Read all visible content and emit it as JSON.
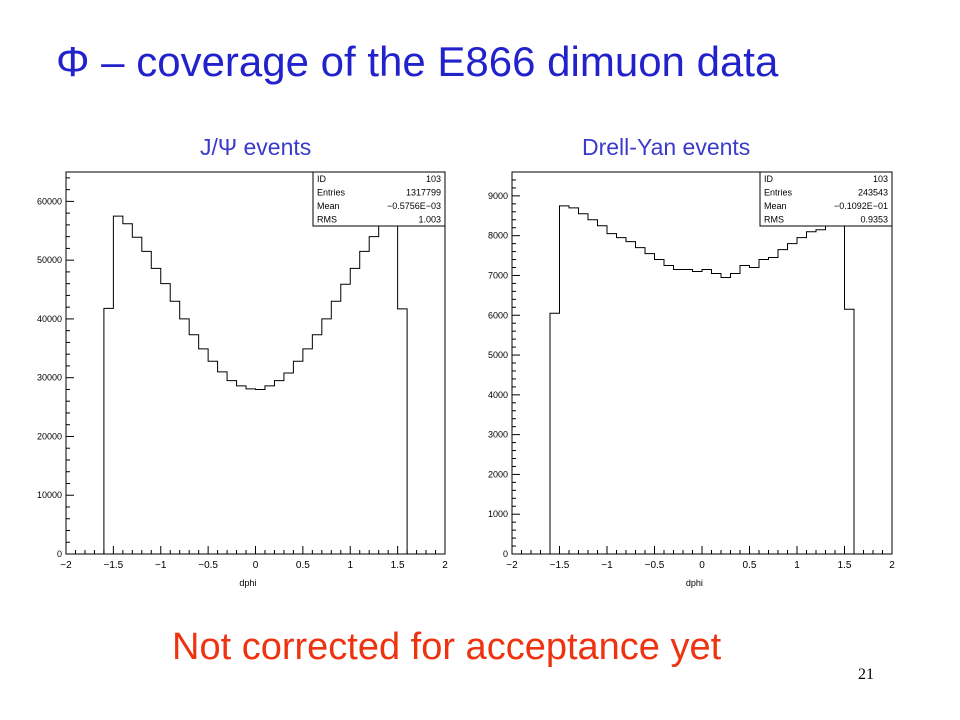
{
  "slide": {
    "title": "Φ – coverage of the E866 dimuon data",
    "note": "Not corrected for acceptance yet",
    "page_number": "21"
  },
  "colors": {
    "title": "#2222cc",
    "panel_title": "#3a3acc",
    "note": "#ee3311"
  },
  "chart_data": [
    {
      "type": "histogram",
      "title": "J/Ψ events",
      "xlabel": "dphi",
      "ylabel": "",
      "xlim": [
        -2,
        2
      ],
      "ylim": [
        0,
        65000
      ],
      "x_ticks": [
        -2,
        -1.5,
        -1,
        -0.5,
        0,
        0.5,
        1,
        1.5,
        2
      ],
      "x_tick_labels": [
        "−2",
        "−1.5",
        "−1",
        "−0.5",
        "0",
        "0.5",
        "1",
        "1.5",
        "2"
      ],
      "y_ticks": [
        0,
        10000,
        20000,
        30000,
        40000,
        50000,
        60000
      ],
      "y_tick_labels": [
        "0",
        "10000",
        "20000",
        "30000",
        "40000",
        "50000",
        "60000"
      ],
      "bin_edges": [
        -1.6,
        -1.5,
        -1.4,
        -1.3,
        -1.2,
        -1.1,
        -1.0,
        -0.9,
        -0.8,
        -0.7,
        -0.6,
        -0.5,
        -0.4,
        -0.3,
        -0.2,
        -0.1,
        0.0,
        0.1,
        0.2,
        0.3,
        0.4,
        0.5,
        0.6,
        0.7,
        0.8,
        0.9,
        1.0,
        1.1,
        1.2,
        1.3,
        1.4,
        1.5,
        1.6
      ],
      "values": [
        41800,
        57500,
        56200,
        53900,
        51500,
        48600,
        46000,
        43000,
        40000,
        37300,
        34900,
        32800,
        31000,
        29500,
        28600,
        28100,
        28000,
        28600,
        29500,
        30800,
        32800,
        34900,
        37300,
        40000,
        43000,
        45900,
        48600,
        51500,
        54000,
        56300,
        57800,
        41700
      ],
      "stats": [
        {
          "label": "ID",
          "value": "103"
        },
        {
          "label": "Entries",
          "value": "1317799"
        },
        {
          "label": "Mean",
          "value": "−0.5756E−03"
        },
        {
          "label": "RMS",
          "value": "1.003"
        }
      ]
    },
    {
      "type": "histogram",
      "title": "Drell-Yan events",
      "xlabel": "dphi",
      "ylabel": "",
      "xlim": [
        -2,
        2
      ],
      "ylim": [
        0,
        9600
      ],
      "x_ticks": [
        -2,
        -1.5,
        -1,
        -0.5,
        0,
        0.5,
        1,
        1.5,
        2
      ],
      "x_tick_labels": [
        "−2",
        "−1.5",
        "−1",
        "−0.5",
        "0",
        "0.5",
        "1",
        "1.5",
        "2"
      ],
      "y_ticks": [
        0,
        1000,
        2000,
        3000,
        4000,
        5000,
        6000,
        7000,
        8000,
        9000
      ],
      "y_tick_labels": [
        "0",
        "1000",
        "2000",
        "3000",
        "4000",
        "5000",
        "6000",
        "7000",
        "8000",
        "9000"
      ],
      "bin_edges": [
        -1.6,
        -1.5,
        -1.4,
        -1.3,
        -1.2,
        -1.1,
        -1.0,
        -0.9,
        -0.8,
        -0.7,
        -0.6,
        -0.5,
        -0.4,
        -0.3,
        -0.2,
        -0.1,
        0.0,
        0.1,
        0.2,
        0.3,
        0.4,
        0.5,
        0.6,
        0.7,
        0.8,
        0.9,
        1.0,
        1.1,
        1.2,
        1.3,
        1.4,
        1.5,
        1.6
      ],
      "values": [
        6050,
        8750,
        8700,
        8550,
        8400,
        8250,
        8050,
        7950,
        7850,
        7700,
        7550,
        7400,
        7250,
        7150,
        7150,
        7100,
        7150,
        7050,
        6950,
        7050,
        7250,
        7200,
        7400,
        7450,
        7650,
        7800,
        7950,
        8100,
        8150,
        8300,
        8400,
        6150
      ],
      "stats": [
        {
          "label": "ID",
          "value": "103"
        },
        {
          "label": "Entries",
          "value": "243543"
        },
        {
          "label": "Mean",
          "value": "−0.1092E−01"
        },
        {
          "label": "RMS",
          "value": "0.9353"
        }
      ]
    }
  ]
}
